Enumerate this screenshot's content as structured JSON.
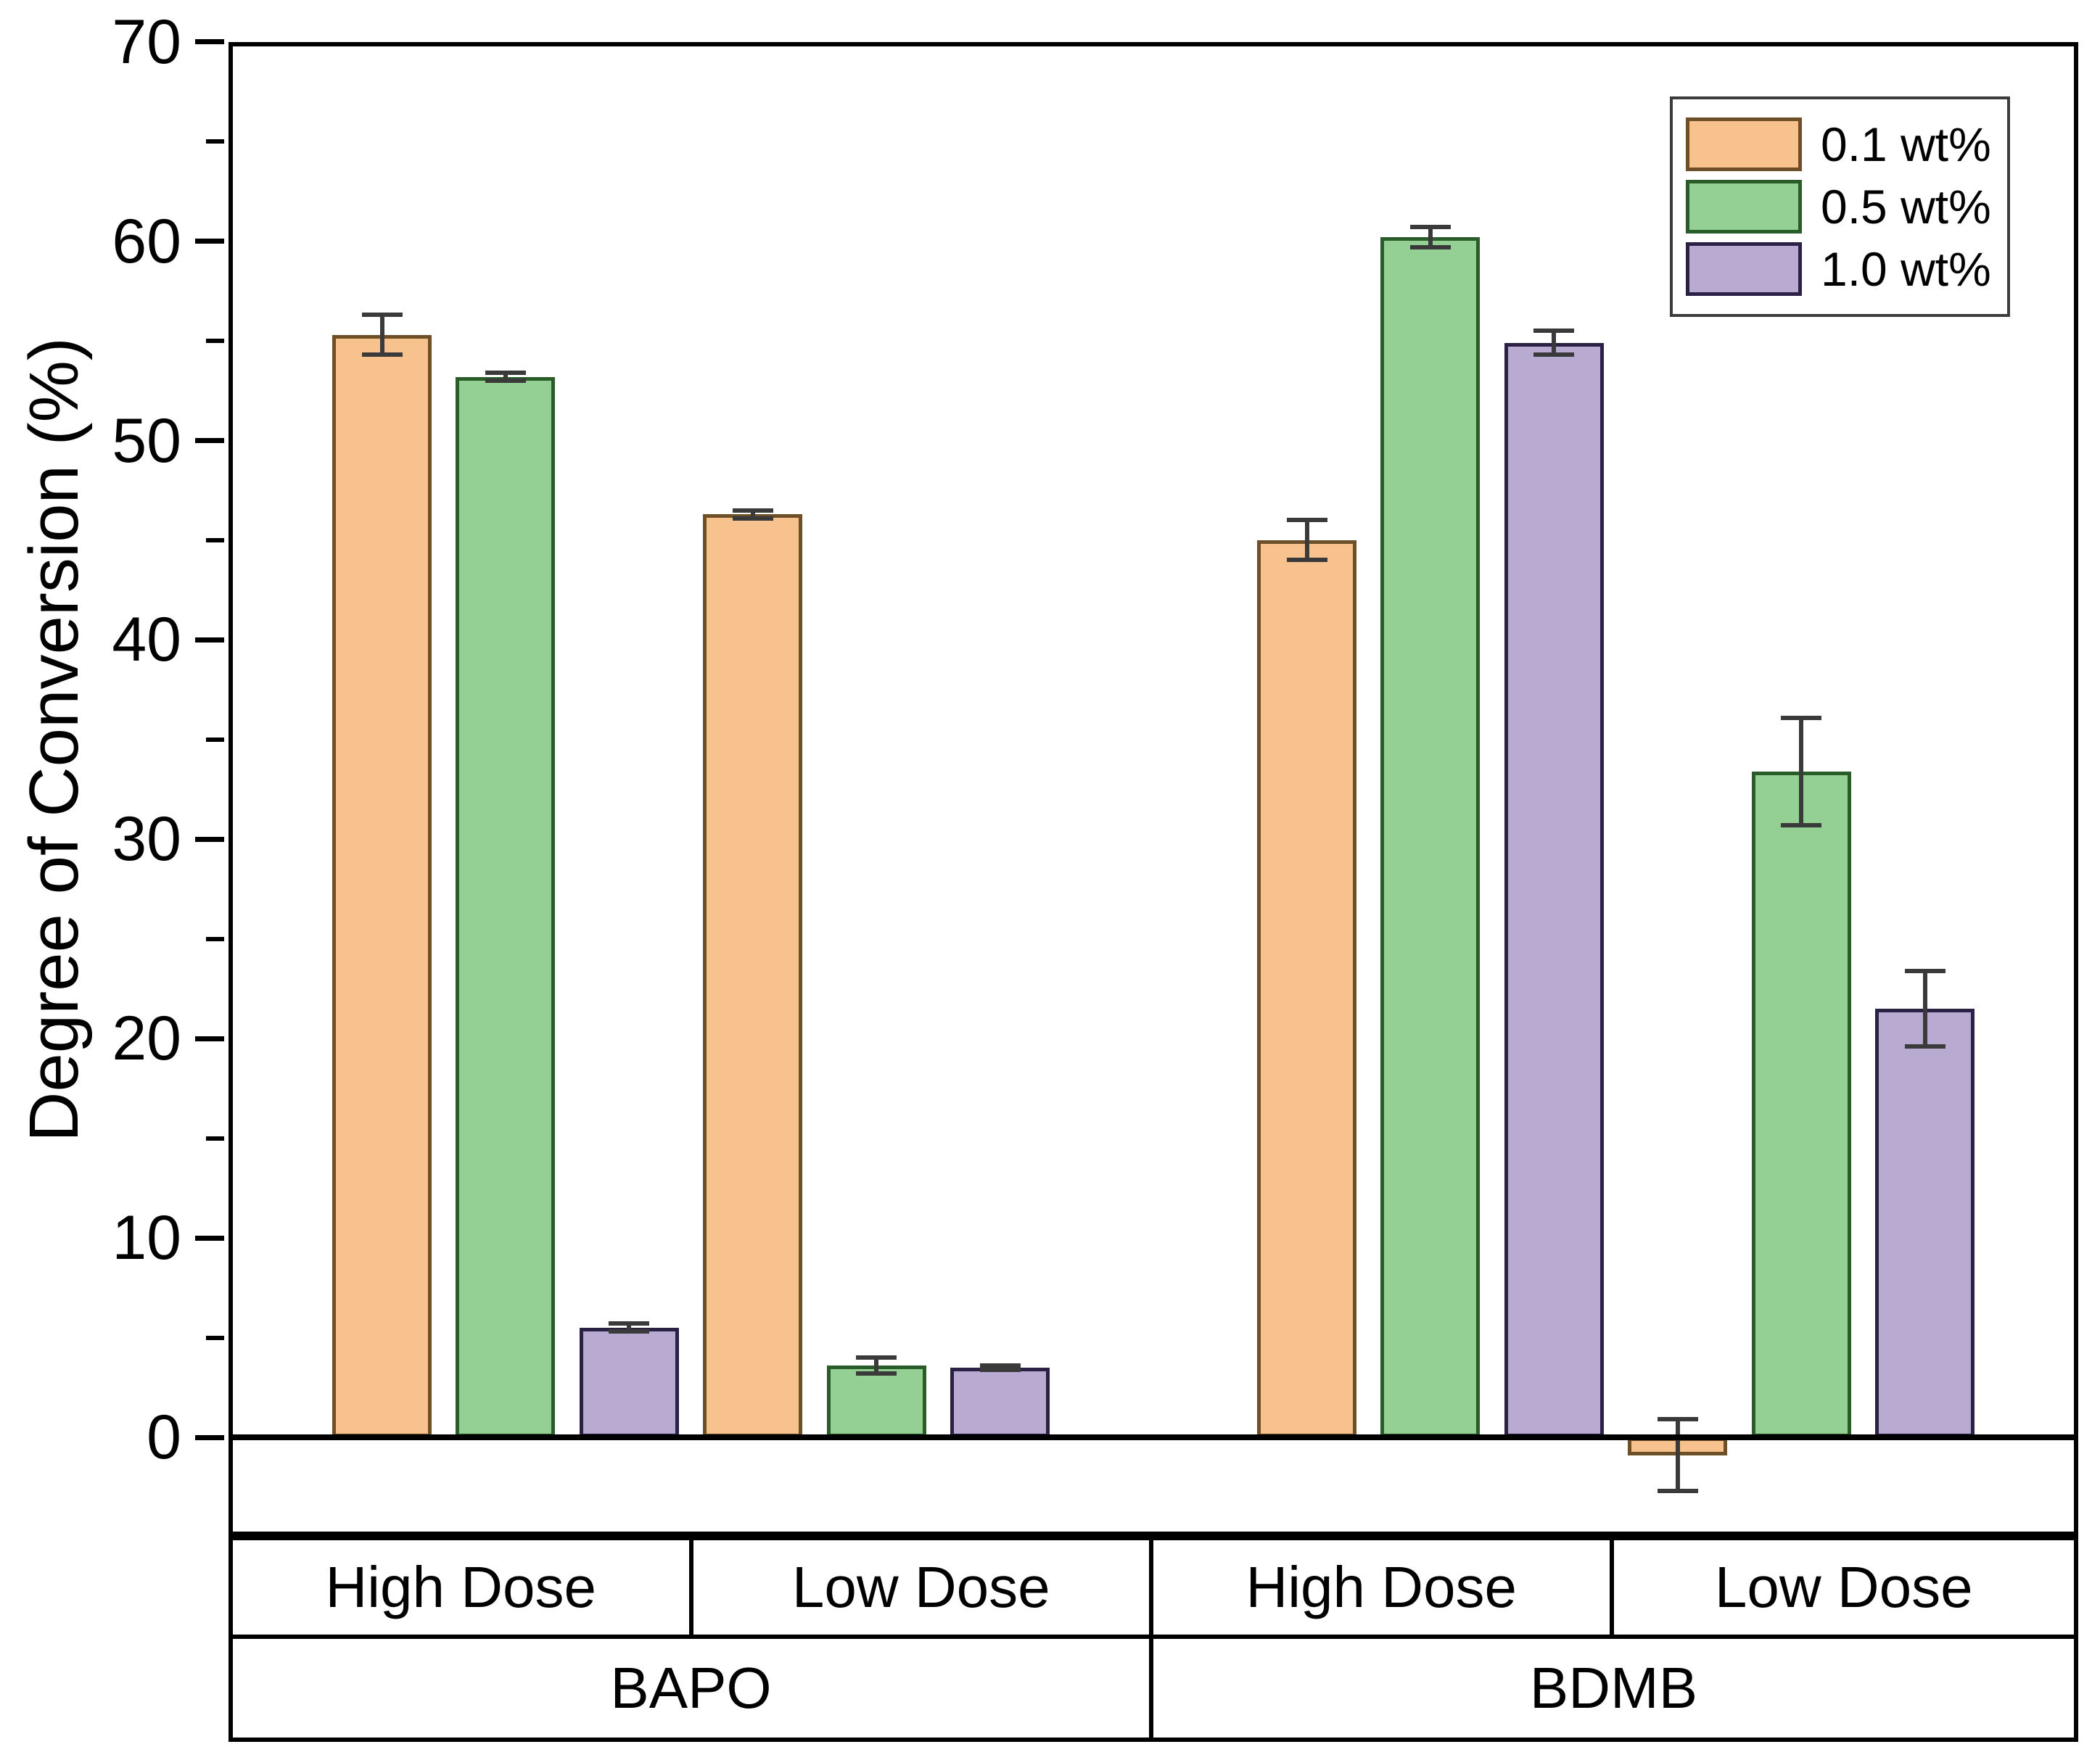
{
  "chart_data": {
    "type": "bar",
    "title": "",
    "xlabel": "",
    "ylabel": "Degree of Conversion (%)",
    "ylim": [
      -4.9,
      70
    ],
    "yticks_major": [
      0,
      10,
      20,
      30,
      40,
      50,
      60,
      70
    ],
    "yticks_minor": [
      5,
      15,
      25,
      35,
      45,
      55,
      65
    ],
    "grid": "off",
    "legend_position": "top-right",
    "categories": [
      "BAPO High Dose",
      "BAPO Low Dose",
      "BDMB High Dose",
      "BDMB Low Dose"
    ],
    "series": [
      {
        "name": "0.1 wt%",
        "fill_color": "#F7C28D",
        "edge_color": "#6E4F28",
        "values": [
          55.3,
          46.3,
          45.0,
          -0.9
        ],
        "errors": [
          1.0,
          0.2,
          1.0,
          1.8
        ]
      },
      {
        "name": "0.5 wt%",
        "fill_color": "#94CF94",
        "edge_color": "#2A5C2A",
        "values": [
          53.2,
          3.6,
          60.2,
          33.4
        ],
        "errors": [
          0.2,
          0.4,
          0.5,
          2.7
        ]
      },
      {
        "name": "1.0 wt%",
        "fill_color": "#B9AAD1",
        "edge_color": "#2A2145",
        "values": [
          5.5,
          3.5,
          54.9,
          21.5
        ],
        "errors": [
          0.2,
          0.1,
          0.6,
          1.9
        ]
      }
    ]
  },
  "legend": {
    "entries": [
      "0.1 wt%",
      "0.5 wt%",
      "1.0 wt%"
    ]
  },
  "axis_table": {
    "dose_cells": [
      "High Dose",
      "Low Dose",
      "High Dose",
      "Low Dose"
    ],
    "initiator_cells": [
      "BAPO",
      "BDMB"
    ]
  },
  "colors": {
    "error_bar": "#3a3a3a",
    "axis": "#000000",
    "background": "#ffffff"
  }
}
